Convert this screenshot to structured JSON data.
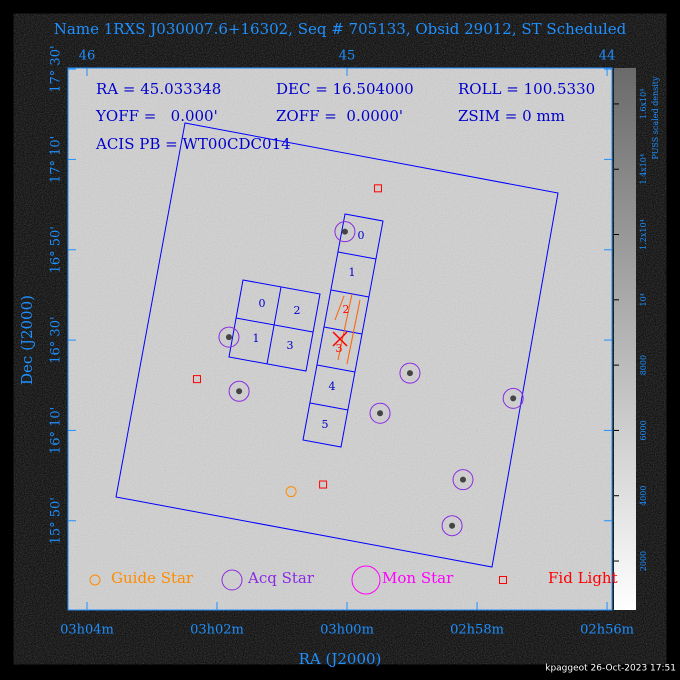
{
  "chart_data": {
    "type": "scatter",
    "title": "Name 1RXS J030007.6+16302, Seq # 705133, Obsid 29012, ST Scheduled",
    "x_label": "RA (J2000)",
    "y_label": "Dec (J2000)",
    "xlim": [
      46.073,
      43.981
    ],
    "ylim": [
      15.504,
      17.504
    ],
    "xticks": [
      {
        "value": 46,
        "label": "03h04m"
      },
      {
        "value": 45.5,
        "label": "03h02m"
      },
      {
        "value": 45,
        "label": "03h00m"
      },
      {
        "value": 44.5,
        "label": "02h58m"
      },
      {
        "value": 44,
        "label": "02h56m"
      }
    ],
    "x2ticks": [
      46,
      45,
      44
    ],
    "yticks": [
      {
        "value": 15.8333,
        "label": "15° 50'"
      },
      {
        "value": 16.1667,
        "label": "16° 10'"
      },
      {
        "value": 16.5,
        "label": "16° 30'"
      },
      {
        "value": 16.8333,
        "label": "16° 50'"
      },
      {
        "value": 17.1667,
        "label": "17° 10'"
      },
      {
        "value": 17.5,
        "label": "17° 30'"
      }
    ],
    "info": [
      "RA = 45.033348",
      "DEC = 16.504000",
      "ROLL = 100.5330",
      "YOFF =   0.000'",
      "ZOFF =  0.0000'",
      "ZSIM = 0 mm",
      "ACIS PB = WT00CDC014"
    ],
    "chips_s": [
      "0",
      "1",
      "2",
      "3",
      "4",
      "5"
    ],
    "chips_i": [
      "0",
      "2",
      "1",
      "3"
    ],
    "series": [
      {
        "name": "Guide Star",
        "color": "#ff8c00",
        "x": [
          45.215
        ],
        "y": [
          15.941
        ]
      },
      {
        "name": "Acq Star",
        "color": "#8a2be2",
        "x": [
          45.008,
          45.454,
          45.415,
          44.758,
          44.873,
          44.361,
          44.554,
          44.596
        ],
        "y": [
          16.9,
          16.511,
          16.311,
          16.378,
          16.23,
          16.285,
          15.985,
          15.815
        ]
      },
      {
        "name": "Mon Star",
        "color": "#ff00ff",
        "x": [],
        "y": []
      },
      {
        "name": "Fid Light",
        "color": "#ff0000",
        "x": [
          44.881,
          45.577,
          45.092
        ],
        "y": [
          17.06,
          16.356,
          15.967
        ]
      }
    ],
    "colorbar": {
      "label": "PUSS scaled density",
      "lim": [
        500,
        17100
      ],
      "ticks": [
        2000,
        4000,
        6000,
        8000,
        {
          "value": 10000,
          "label": "10⁴"
        },
        {
          "value": 12000,
          "label": "1.2x10⁴"
        },
        {
          "value": 14000,
          "label": "1.4x10⁴"
        },
        {
          "value": 16000,
          "label": "1.6x10⁴"
        }
      ]
    },
    "footer": "kpaggeot 26-Oct-2023 17:51"
  }
}
